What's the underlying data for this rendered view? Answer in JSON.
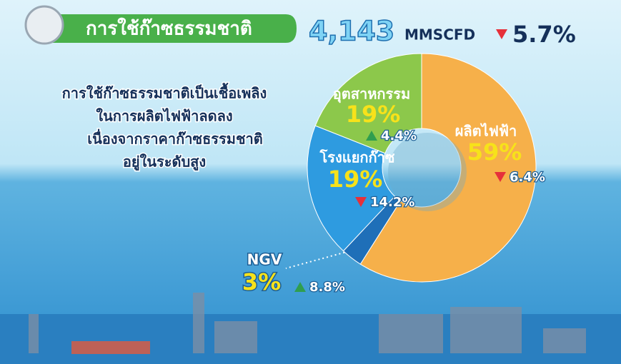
{
  "chart_data": {
    "type": "pie",
    "donut": true,
    "title": "การใช้ก๊าซธรรมชาติ",
    "total": {
      "value": 4143,
      "label": "4,143"
    },
    "unit": "MMSCFD",
    "total_change": {
      "direction": "down",
      "label": "5.7%"
    },
    "annotation": [
      "การใช้ก๊าซธรรมชาติเป็นเชื้อเพลิง",
      "ในการผลิตไฟฟ้าลดลง",
      "เนื่องจากราคาก๊าซธรรมชาติ",
      "อยู่ในระดับสูง"
    ],
    "categories": [
      "ผลิตไฟฟ้า",
      "NGV",
      "โรงแยกก๊าซ",
      "อุตสาหกรรม"
    ],
    "values": [
      59,
      3,
      19,
      19
    ],
    "value_labels": [
      "59%",
      "3%",
      "19%",
      "19%"
    ],
    "colors": [
      "#f6b04a",
      "#1f6fb8",
      "#2e9be0",
      "#8cc84b"
    ],
    "changes": [
      {
        "direction": "down",
        "label": "6.4%"
      },
      {
        "direction": "up",
        "label": "8.8%"
      },
      {
        "direction": "down",
        "label": "14.2%"
      },
      {
        "direction": "up",
        "label": "4.4%"
      }
    ]
  }
}
